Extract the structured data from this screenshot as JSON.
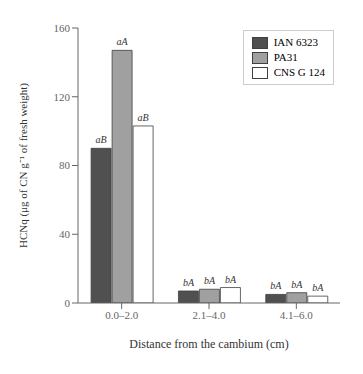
{
  "chart_data": {
    "type": "bar",
    "xlabel": "Distance from the cambium (cm)",
    "ylabel": "HCNq (μg of CN g⁻¹ of fresh weight)",
    "categories": [
      "0.0–2.0",
      "2.1–4.0",
      "4.1–6.0"
    ],
    "series": [
      {
        "name": "IAN 6323",
        "color": "#505050",
        "values": [
          90,
          7,
          5
        ],
        "value_labels": [
          "aB",
          "bA",
          "bA"
        ]
      },
      {
        "name": "PA31",
        "color": "#a0a0a0",
        "values": [
          147,
          8,
          6
        ],
        "value_labels": [
          "aA",
          "bA",
          "bA"
        ]
      },
      {
        "name": "CNS G 124",
        "color": "#ffffff",
        "values": [
          103,
          9,
          4
        ],
        "value_labels": [
          "aB",
          "bA",
          "bA"
        ]
      }
    ],
    "ylim": [
      0,
      160
    ],
    "yticks": [
      0,
      40,
      80,
      120,
      160
    ],
    "grid": false,
    "legend": "upper right"
  }
}
